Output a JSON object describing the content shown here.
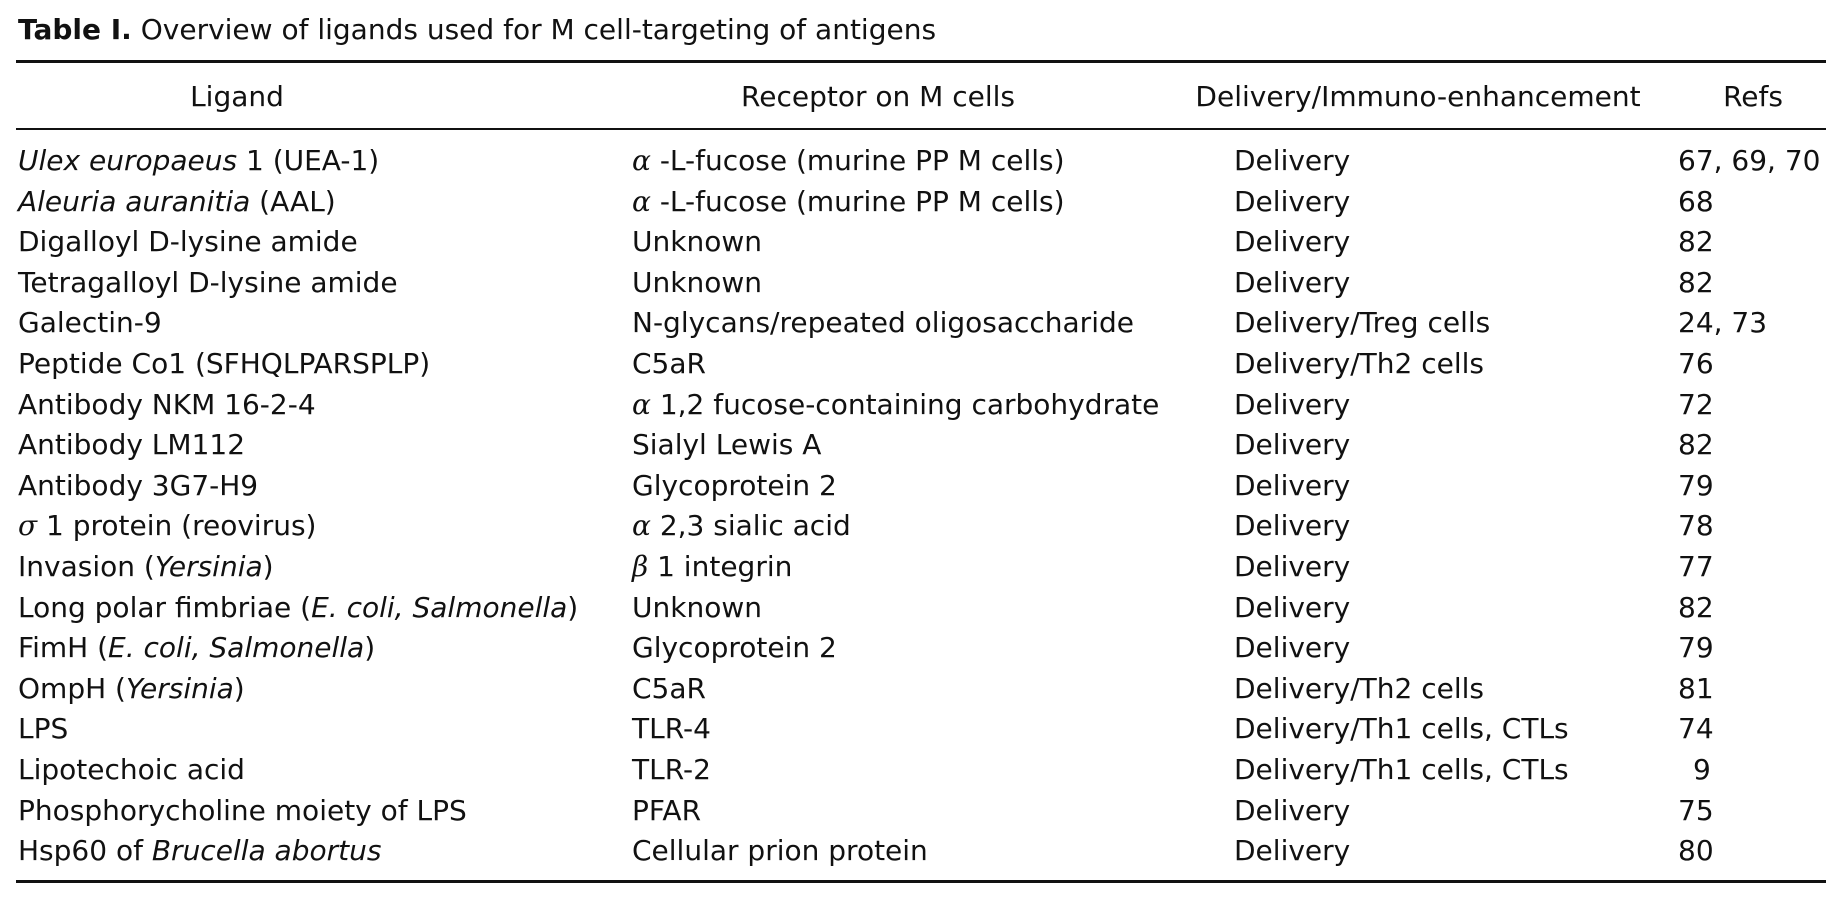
{
  "caption": {
    "label": "Table I.",
    "text": "Overview of ligands used for M cell-targeting of antigens"
  },
  "headers": {
    "ligand": "Ligand",
    "receptor": "Receptor on M cells",
    "delivery": "Delivery/Immuno-enhancement",
    "refs": "Refs"
  },
  "rows": [
    {
      "ligand_it": "Ulex europaeus",
      "ligand_rest": " 1 (UEA-1)",
      "receptor_greek": "α",
      "receptor": "-L-fucose (murine PP M cells)",
      "delivery": "Delivery",
      "refs": "67, 69, 70"
    },
    {
      "ligand_it": "Aleuria auranitia",
      "ligand_rest": " (AAL)",
      "receptor_greek": "α",
      "receptor": "-L-fucose (murine PP M cells)",
      "delivery": "Delivery",
      "refs": "68"
    },
    {
      "ligand": "Digalloyl D-lysine amide",
      "receptor": "Unknown",
      "delivery": "Delivery",
      "refs": "82"
    },
    {
      "ligand": "Tetragalloyl D-lysine amide",
      "receptor": "Unknown",
      "delivery": "Delivery",
      "refs": "82"
    },
    {
      "ligand": "Galectin-9",
      "receptor": "N-glycans/repeated oligosaccharide",
      "delivery": "Delivery/Treg cells",
      "refs": "24, 73"
    },
    {
      "ligand": "Peptide Co1 (SFHQLPARSPLP)",
      "receptor": "C5aR",
      "delivery": "Delivery/Th2 cells",
      "refs": "76"
    },
    {
      "ligand": "Antibody NKM 16-2-4",
      "receptor_greek": "α",
      "receptor": "1,2 fucose-containing carbohydrate",
      "delivery": "Delivery",
      "refs": "72"
    },
    {
      "ligand": "Antibody LM112",
      "receptor": "Sialyl Lewis A",
      "delivery": "Delivery",
      "refs": "82"
    },
    {
      "ligand": "Antibody 3G7-H9",
      "receptor": "Glycoprotein 2",
      "delivery": "Delivery",
      "refs": "79"
    },
    {
      "ligand_greek": "σ",
      "ligand": "1 protein (reovirus)",
      "receptor_greek": "α",
      "receptor": "2,3 sialic acid",
      "delivery": "Delivery",
      "refs": "78"
    },
    {
      "ligand": "Invasion (",
      "ligand_it": "Yersinia",
      "ligand_rest": ")",
      "receptor_greek": "β",
      "receptor": "1 integrin",
      "delivery": "Delivery",
      "refs": "77"
    },
    {
      "ligand": "Long polar fimbriae (",
      "ligand_it": "E. coli, Salmonella",
      "ligand_rest": ")",
      "receptor": "Unknown",
      "delivery": "Delivery",
      "refs": "82"
    },
    {
      "ligand": "FimH (",
      "ligand_it": "E. coli, Salmonella",
      "ligand_rest": ")",
      "receptor": "Glycoprotein 2",
      "delivery": "Delivery",
      "refs": "79"
    },
    {
      "ligand": "OmpH (",
      "ligand_it": "Yersinia",
      "ligand_rest": ")",
      "receptor": "C5aR",
      "delivery": "Delivery/Th2 cells",
      "refs": "81"
    },
    {
      "ligand": "LPS",
      "receptor": "TLR-4",
      "delivery": "Delivery/Th1 cells, CTLs",
      "refs": "74"
    },
    {
      "ligand": "Lipotechoic acid",
      "receptor": "TLR-2",
      "delivery": "Delivery/Th1 cells, CTLs",
      "refs": "9"
    },
    {
      "ligand": "Phosphorycholine moiety of LPS",
      "receptor": "PFAR",
      "delivery": "Delivery",
      "refs": "75"
    },
    {
      "ligand": "Hsp60 of ",
      "ligand_it": "Brucella abortus",
      "receptor": "Cellular prion protein",
      "delivery": "Delivery",
      "refs": "80"
    }
  ]
}
